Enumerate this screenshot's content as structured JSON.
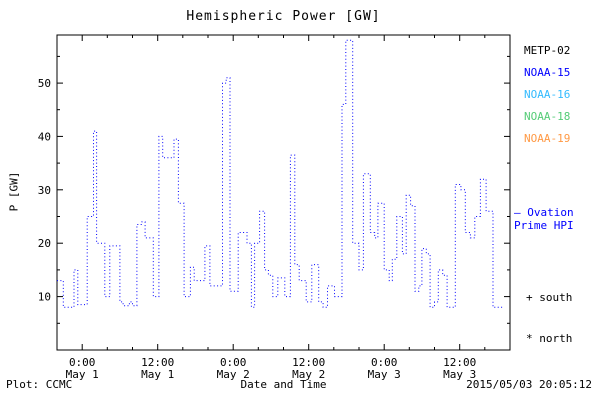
{
  "title": "Hemispheric Power [GW]",
  "footer": {
    "left": "Plot: CCMC",
    "right": "2015/05/03 20:05:12"
  },
  "legend": {
    "satellites": [
      {
        "label": "METP-02",
        "color": "#000000"
      },
      {
        "label": "NOAA-15",
        "color": "#0000ff"
      },
      {
        "label": "NOAA-16",
        "color": "#33bbff"
      },
      {
        "label": "NOAA-18",
        "color": "#55cc77"
      },
      {
        "label": "NOAA-19",
        "color": "#ff9944"
      }
    ],
    "note_line1": "— Ovation",
    "note_line2": "Prime HPI",
    "note_color": "#0000ff",
    "south": "+ south",
    "north": "* north"
  },
  "chart_data": {
    "type": "line",
    "title": "Hemispheric Power [GW]",
    "xlabel": "Date and Time",
    "ylabel": "P [GW]",
    "line_style": "dotted-step",
    "line_color": "#0000ff",
    "ylim": [
      0,
      59
    ],
    "yticks": [
      10,
      20,
      30,
      40,
      50
    ],
    "x_hours_range": [
      -4,
      68
    ],
    "xticks": [
      {
        "hour": 0,
        "time": "0:00",
        "date": "May 1"
      },
      {
        "hour": 12,
        "time": "12:00",
        "date": "May 1"
      },
      {
        "hour": 24,
        "time": "0:00",
        "date": "May 2"
      },
      {
        "hour": 36,
        "time": "12:00",
        "date": "May 2"
      },
      {
        "hour": 48,
        "time": "0:00",
        "date": "May 3"
      },
      {
        "hour": 60,
        "time": "12:00",
        "date": "May 3"
      }
    ],
    "series": [
      {
        "name": "Ovation Prime HPI",
        "points": [
          [
            -4,
            13
          ],
          [
            -3,
            8
          ],
          [
            -1.3,
            15
          ],
          [
            -0.7,
            8.5
          ],
          [
            0.8,
            25
          ],
          [
            1.8,
            41
          ],
          [
            2.3,
            20
          ],
          [
            3.6,
            10
          ],
          [
            4.4,
            19.5
          ],
          [
            6,
            9
          ],
          [
            6.5,
            8.3
          ],
          [
            7.5,
            9
          ],
          [
            8,
            8.3
          ],
          [
            8.7,
            23.5
          ],
          [
            9.5,
            24
          ],
          [
            10,
            21
          ],
          [
            11.3,
            10
          ],
          [
            12.2,
            40
          ],
          [
            12.8,
            36
          ],
          [
            14.6,
            39.5
          ],
          [
            15.3,
            27.5
          ],
          [
            16.2,
            10
          ],
          [
            17.2,
            15.5
          ],
          [
            17.8,
            13
          ],
          [
            19.5,
            19.5
          ],
          [
            20.3,
            12
          ],
          [
            22.3,
            50
          ],
          [
            22.9,
            51
          ],
          [
            23.5,
            11
          ],
          [
            24.8,
            22
          ],
          [
            26.2,
            20
          ],
          [
            26.9,
            8
          ],
          [
            27.4,
            20
          ],
          [
            28.2,
            26
          ],
          [
            29,
            15
          ],
          [
            29.6,
            14
          ],
          [
            30.3,
            10
          ],
          [
            31.1,
            13.5
          ],
          [
            32.2,
            10
          ],
          [
            33.1,
            36.5
          ],
          [
            33.8,
            16
          ],
          [
            34.5,
            13
          ],
          [
            35.6,
            9
          ],
          [
            36.5,
            16
          ],
          [
            37.6,
            9
          ],
          [
            38.3,
            8
          ],
          [
            39,
            12
          ],
          [
            40.1,
            10
          ],
          [
            41.3,
            46
          ],
          [
            41.9,
            58
          ],
          [
            43,
            20
          ],
          [
            44,
            15
          ],
          [
            44.7,
            33
          ],
          [
            45.8,
            22
          ],
          [
            46.5,
            21
          ],
          [
            47,
            27.5
          ],
          [
            48,
            15
          ],
          [
            48.8,
            13
          ],
          [
            49.3,
            17
          ],
          [
            50,
            25
          ],
          [
            50.9,
            18
          ],
          [
            51.5,
            29
          ],
          [
            52.2,
            27
          ],
          [
            52.9,
            11
          ],
          [
            53.5,
            12
          ],
          [
            54,
            19
          ],
          [
            54.7,
            18
          ],
          [
            55.3,
            8
          ],
          [
            56,
            9
          ],
          [
            56.6,
            15
          ],
          [
            57.3,
            14
          ],
          [
            58,
            8
          ],
          [
            59.3,
            31
          ],
          [
            60.2,
            30
          ],
          [
            60.9,
            22
          ],
          [
            61.7,
            21
          ],
          [
            62.4,
            25
          ],
          [
            63.3,
            32
          ],
          [
            64.2,
            26
          ],
          [
            65.3,
            8
          ],
          [
            67,
            8
          ]
        ]
      }
    ]
  }
}
